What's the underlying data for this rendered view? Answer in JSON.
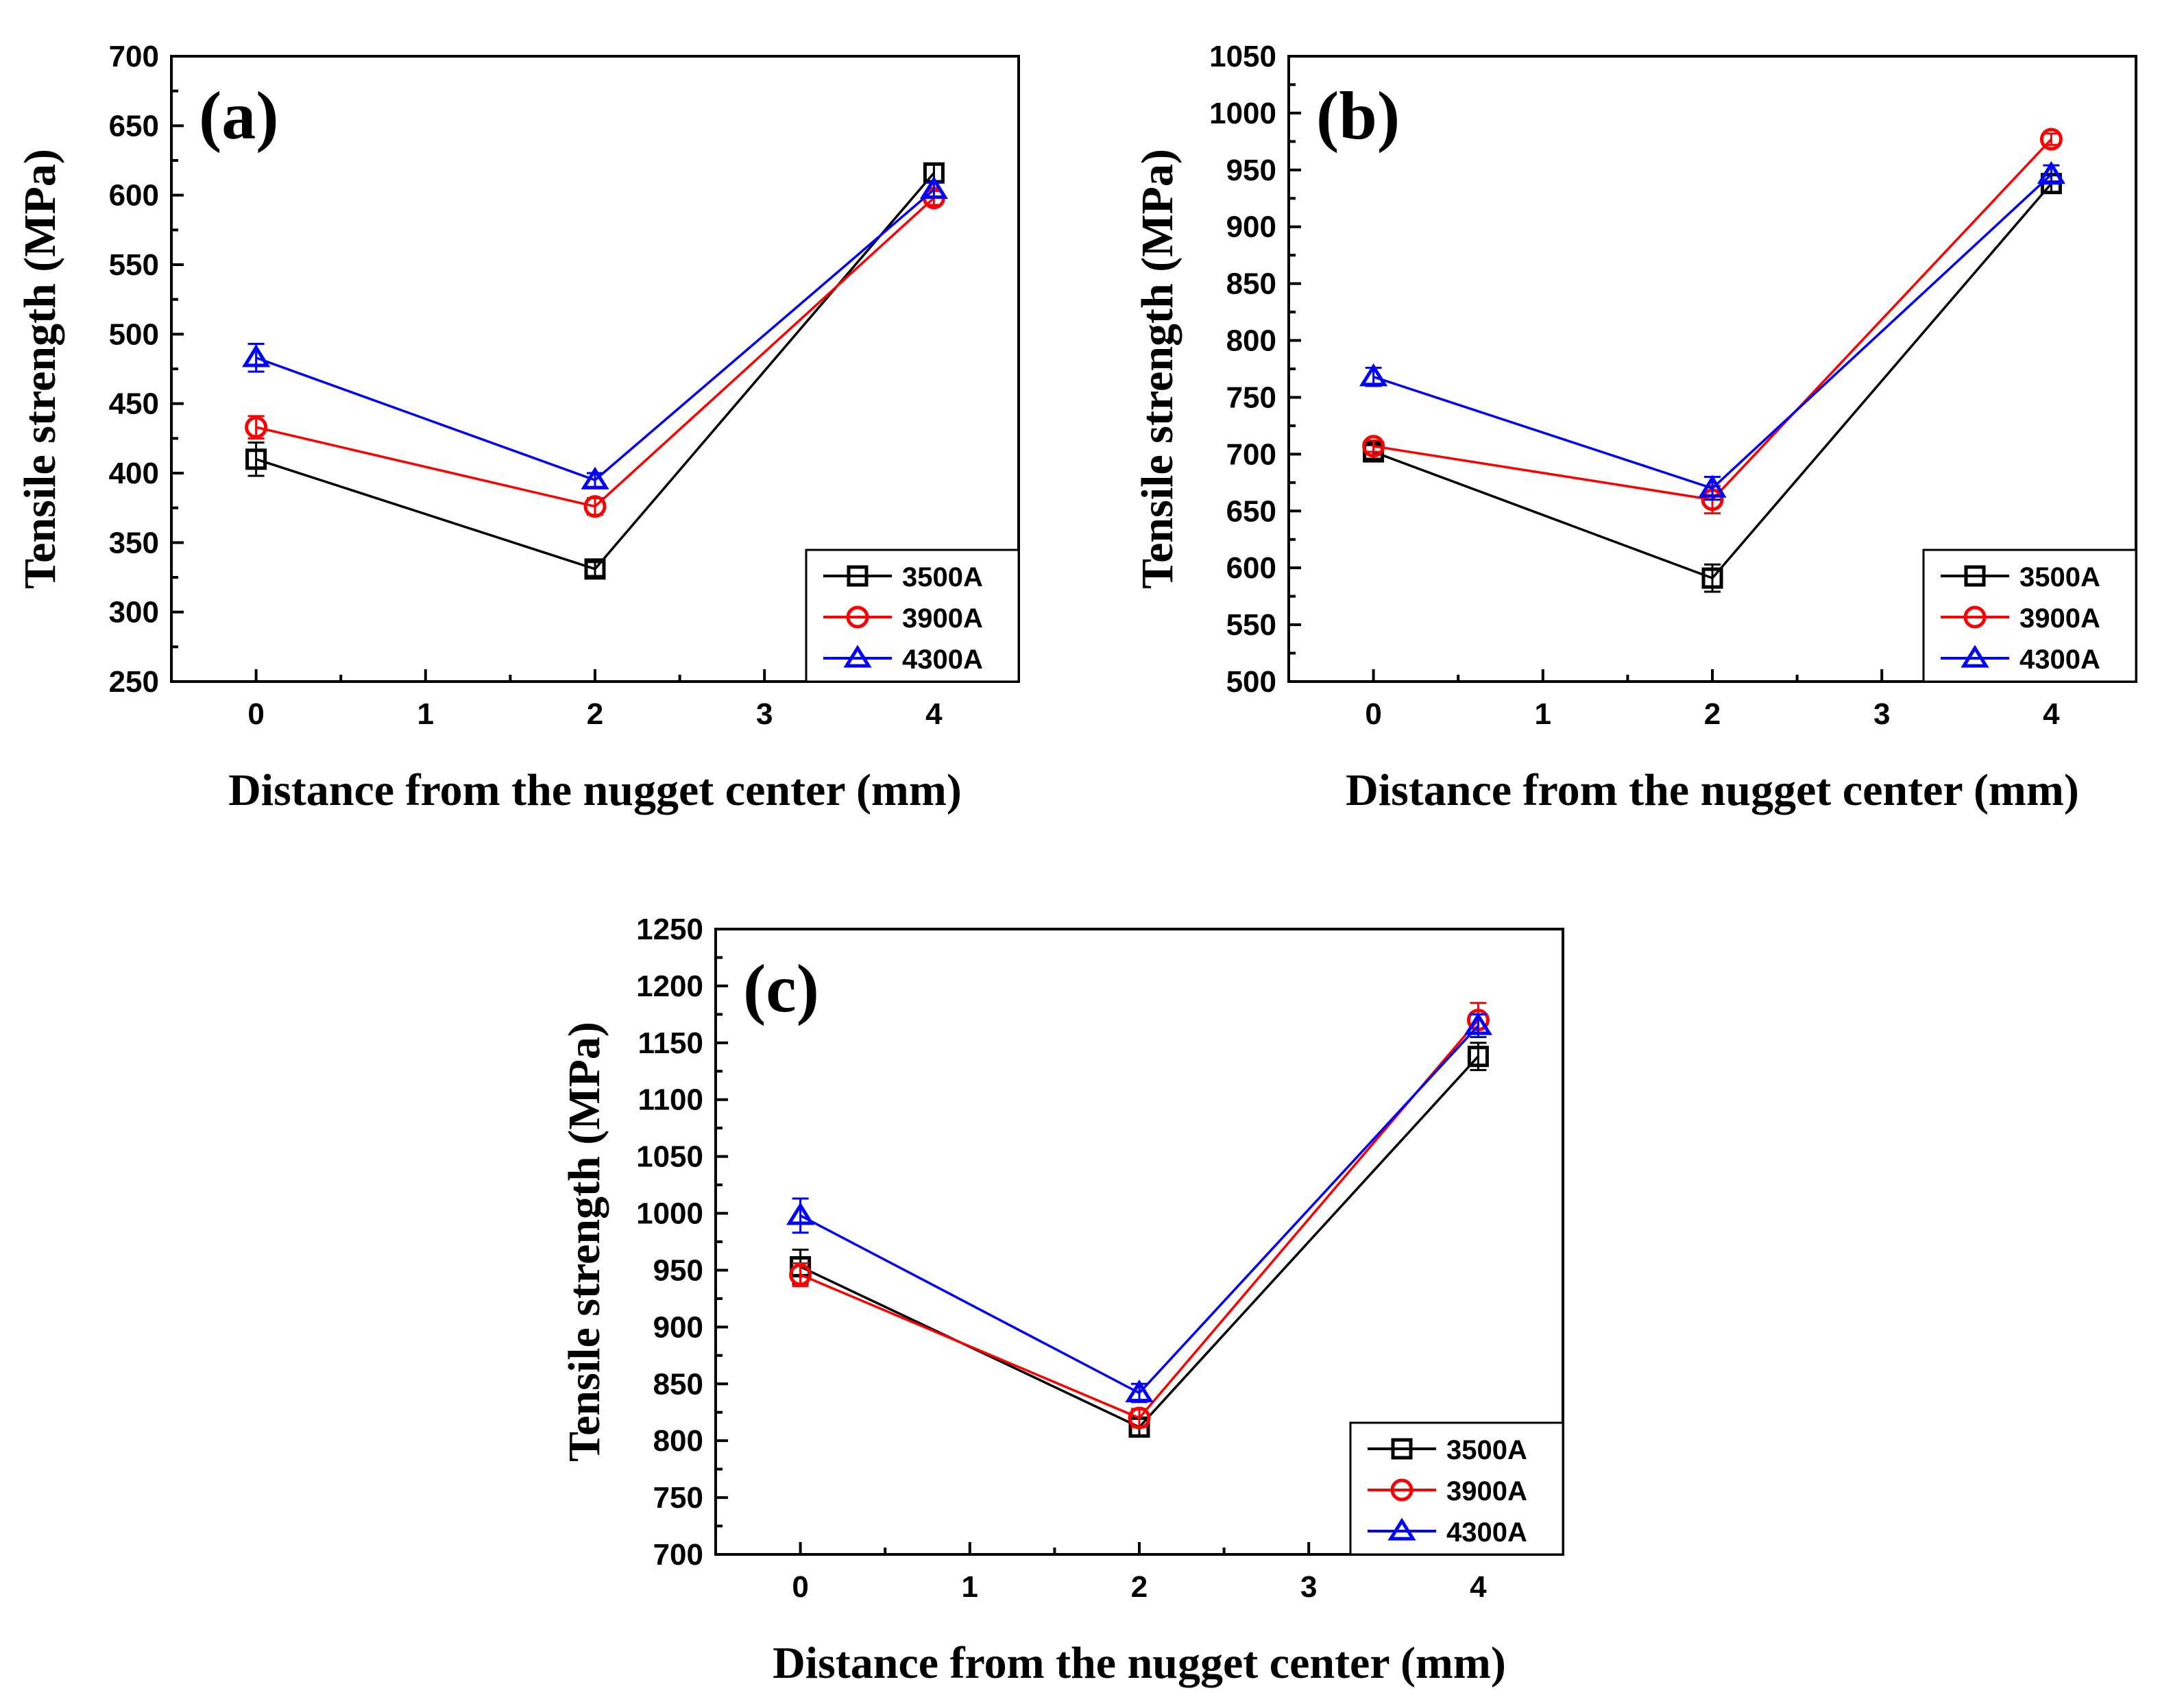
{
  "chart_data": [
    {
      "type": "line",
      "panel_label": "(a)",
      "xlabel": "Distance from the nugget center (mm)",
      "ylabel": "Tensile strength (MPa)",
      "xlim": [
        -0.5,
        4.5
      ],
      "ylim": [
        250,
        700
      ],
      "xticks": [
        "0",
        "1",
        "2",
        "3",
        "4"
      ],
      "yticks": [
        "250",
        "300",
        "350",
        "400",
        "450",
        "500",
        "550",
        "600",
        "650",
        "700"
      ],
      "x": [
        0,
        2,
        4
      ],
      "series": [
        {
          "name": "3500A",
          "color": "#000000",
          "marker": "square",
          "values": [
            410,
            331,
            616
          ],
          "errors": [
            12,
            5,
            6
          ]
        },
        {
          "name": "3900A",
          "color": "#ff0000",
          "marker": "circle",
          "values": [
            433,
            376,
            598
          ],
          "errors": [
            8,
            6,
            5
          ]
        },
        {
          "name": "4300A",
          "color": "#0000ff",
          "marker": "triangle",
          "values": [
            483,
            395,
            604
          ],
          "errors": [
            10,
            5,
            5
          ]
        }
      ],
      "legend_position": "bottom-right"
    },
    {
      "type": "line",
      "panel_label": "(b)",
      "xlabel": "Distance from the nugget center (mm)",
      "ylabel": "Tensile strength (MPa)",
      "xlim": [
        -0.5,
        4.5
      ],
      "ylim": [
        500,
        1050
      ],
      "xticks": [
        "0",
        "1",
        "2",
        "3",
        "4"
      ],
      "yticks": [
        "500",
        "550",
        "600",
        "650",
        "700",
        "750",
        "800",
        "850",
        "900",
        "950",
        "1000",
        "1050"
      ],
      "x": [
        0,
        2,
        4
      ],
      "series": [
        {
          "name": "3500A",
          "color": "#000000",
          "marker": "square",
          "values": [
            702,
            591,
            938
          ],
          "errors": [
            6,
            12,
            8
          ]
        },
        {
          "name": "3900A",
          "color": "#ff0000",
          "marker": "circle",
          "values": [
            707,
            660,
            977
          ],
          "errors": [
            5,
            12,
            5
          ]
        },
        {
          "name": "4300A",
          "color": "#0000ff",
          "marker": "triangle",
          "values": [
            768,
            670,
            946
          ],
          "errors": [
            8,
            10,
            8
          ]
        }
      ],
      "legend_position": "bottom-right"
    },
    {
      "type": "line",
      "panel_label": "(c)",
      "xlabel": "Distance from the nugget center (mm)",
      "ylabel": "Tensile strength (MPa)",
      "xlim": [
        -0.5,
        4.5
      ],
      "ylim": [
        700,
        1250
      ],
      "xticks": [
        "0",
        "1",
        "2",
        "3",
        "4"
      ],
      "yticks": [
        "700",
        "750",
        "800",
        "850",
        "900",
        "950",
        "1000",
        "1050",
        "1100",
        "1150",
        "1200",
        "1250"
      ],
      "x": [
        0,
        2,
        4
      ],
      "series": [
        {
          "name": "3500A",
          "color": "#000000",
          "marker": "square",
          "values": [
            953,
            812,
            1138
          ],
          "errors": [
            15,
            8,
            12
          ]
        },
        {
          "name": "3900A",
          "color": "#ff0000",
          "marker": "circle",
          "values": [
            946,
            820,
            1170
          ],
          "errors": [
            10,
            8,
            15
          ]
        },
        {
          "name": "4300A",
          "color": "#0000ff",
          "marker": "triangle",
          "values": [
            998,
            842,
            1165
          ],
          "errors": [
            15,
            8,
            10
          ]
        }
      ],
      "legend_position": "bottom-right"
    }
  ]
}
